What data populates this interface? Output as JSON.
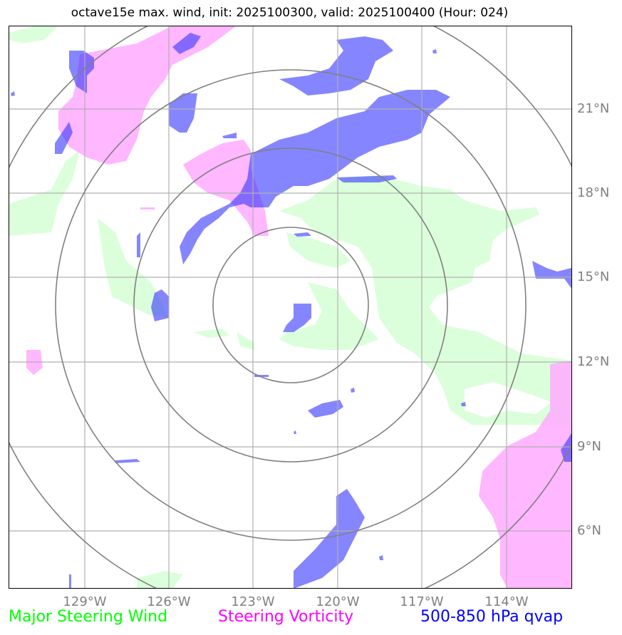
{
  "title": "octave15e max. wind, init: 2025100300, valid: 2025100400 (Hour: 024)",
  "lat_labels": [
    "21°N",
    "18°N",
    "15°N",
    "12°N",
    "9°N",
    "6°N"
  ],
  "lon_labels": [
    "129°W",
    "126°W",
    "123°W",
    "120°W",
    "117°W",
    "114°W"
  ],
  "legend": {
    "wind": "Major Steering Wind",
    "vorticity": "Steering Vorticity",
    "qvap": "500-850 hPa qvap"
  },
  "colors": {
    "wind": "#00ff00",
    "vorticity": "#ff00ff",
    "qvap": "#0000ff",
    "grid": "#b0b0b0",
    "range_rings": "#808080"
  },
  "range_ring_count": 4
}
